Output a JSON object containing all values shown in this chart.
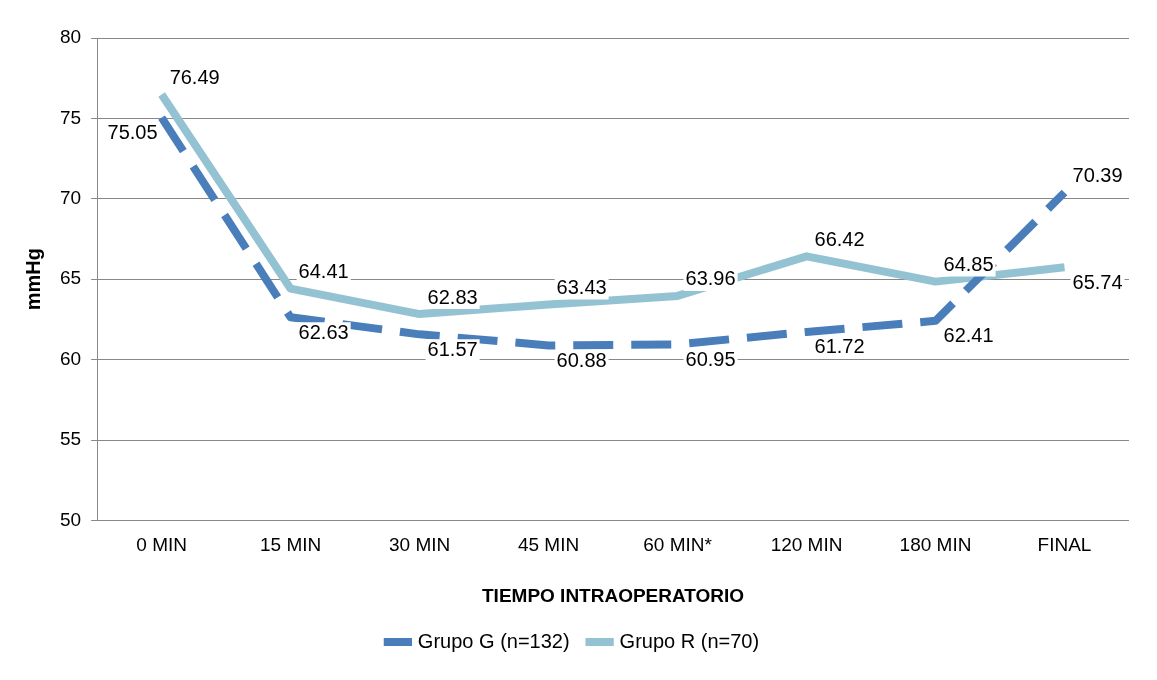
{
  "chart_data": {
    "type": "line",
    "xlabel": "TIEMPO INTRAOPERATORIO",
    "ylabel": "mmHg",
    "categories": [
      "0 MIN",
      "15 MIN",
      "30 MIN",
      "45 MIN",
      "60 MIN*",
      "120 MIN",
      "180 MIN",
      "FINAL"
    ],
    "series": [
      {
        "name": "Grupo G (n=132)",
        "color": "#4a7ebb",
        "line_style": "dashed",
        "values": [
          75.05,
          62.63,
          61.57,
          60.88,
          60.95,
          61.72,
          62.41,
          70.39
        ]
      },
      {
        "name": "Grupo R (n=70)",
        "color": "#93c3d3",
        "line_style": "solid",
        "values": [
          76.49,
          64.41,
          62.83,
          63.43,
          63.96,
          66.42,
          64.85,
          65.74
        ]
      }
    ],
    "ylim": [
      50,
      80
    ],
    "yticks": [
      50,
      55,
      60,
      65,
      70,
      75,
      80
    ],
    "grid": "y",
    "legend": "bottom",
    "data_labels": true
  }
}
